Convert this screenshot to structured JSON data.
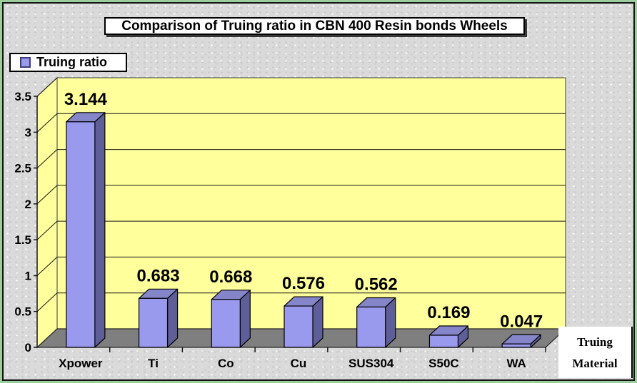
{
  "frame": {
    "outer_border_color": "#9dcd9d",
    "inner_border_color": "#141414",
    "background_color": "#dadada"
  },
  "chart_data": {
    "type": "bar",
    "style": "excel-3d-column",
    "title": "Comparison of Truing ratio in CBN 400 Resin bonds Wheels",
    "series_name": "Truing ratio",
    "categories": [
      "Xpower",
      "Ti",
      "Co",
      "Cu",
      "SUS304",
      "S50C",
      "WA"
    ],
    "values": [
      3.144,
      0.683,
      0.668,
      0.576,
      0.562,
      0.169,
      0.047
    ],
    "data_labels": [
      "3.144",
      "0.683",
      "0.668",
      "0.576",
      "0.562",
      "0.169",
      "0.047"
    ],
    "xlabel": "Truing Material",
    "xlabel_lines": [
      "Truing",
      "Material"
    ],
    "ylabel": "",
    "ylim": [
      0,
      3.5
    ],
    "ytick_step": 0.5,
    "yticks": [
      "0",
      "0.5",
      "1",
      "1.5",
      "2",
      "2.5",
      "3",
      "3.5"
    ],
    "grid": true,
    "legend_position": "top-left",
    "colors": {
      "bar_front": "#9999ee",
      "bar_side": "#5e5e99",
      "bar_top": "#8585c9",
      "wall": "#ffff9c",
      "floor": "#7f7f7f",
      "gridline": "#161616",
      "text": "#000000"
    }
  }
}
